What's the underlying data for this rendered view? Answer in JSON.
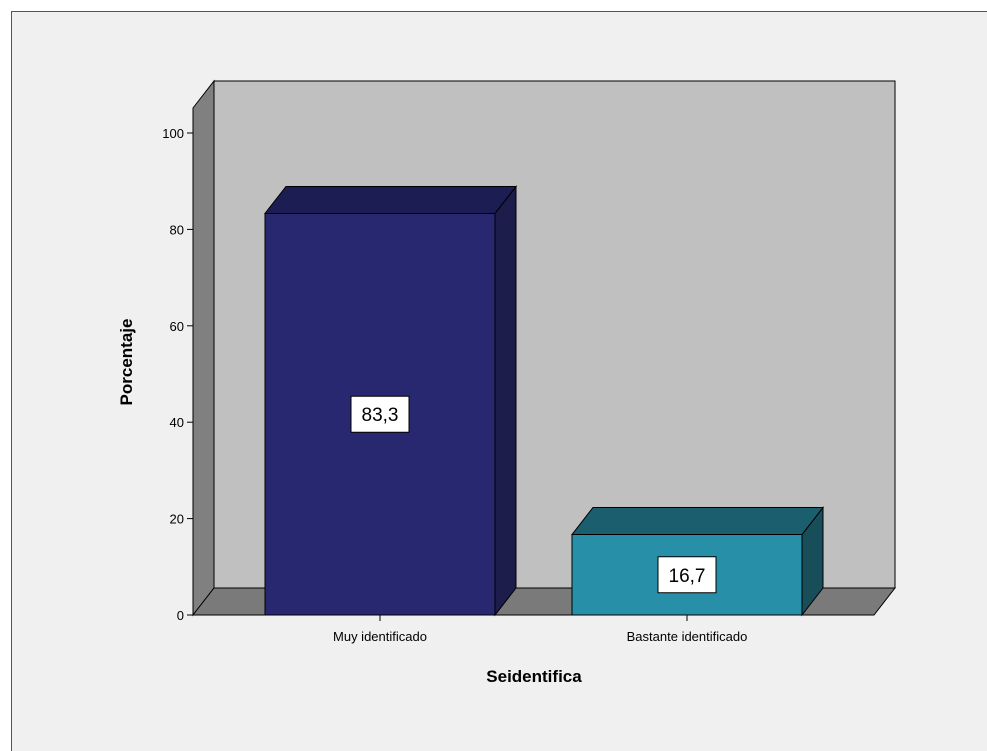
{
  "chart_data": {
    "type": "bar",
    "categories": [
      "Muy identificado",
      "Bastante identificado"
    ],
    "values": [
      83.3,
      16.7
    ],
    "value_labels": [
      "83,3",
      "16,7"
    ],
    "xlabel": "Seidentifica",
    "ylabel": "Porcentaje",
    "ylim": [
      0,
      100
    ],
    "yticks": [
      0,
      20,
      40,
      60,
      80,
      100
    ],
    "ytick_labels": [
      "0",
      "20",
      "40",
      "60",
      "80",
      "100"
    ],
    "style": "3d",
    "grid": false,
    "legend": "none",
    "colors": {
      "bars": [
        "#27286f",
        "#2790a8"
      ],
      "bar_tops": [
        "#1c1d52",
        "#1b5e6e"
      ],
      "bar_sides": [
        "#1c1d4a",
        "#184d5a"
      ],
      "back_wall": "#c0c0c0",
      "side_wall": "#808080",
      "floor": "#7a7a7a",
      "background": "#f0f0f0"
    }
  }
}
